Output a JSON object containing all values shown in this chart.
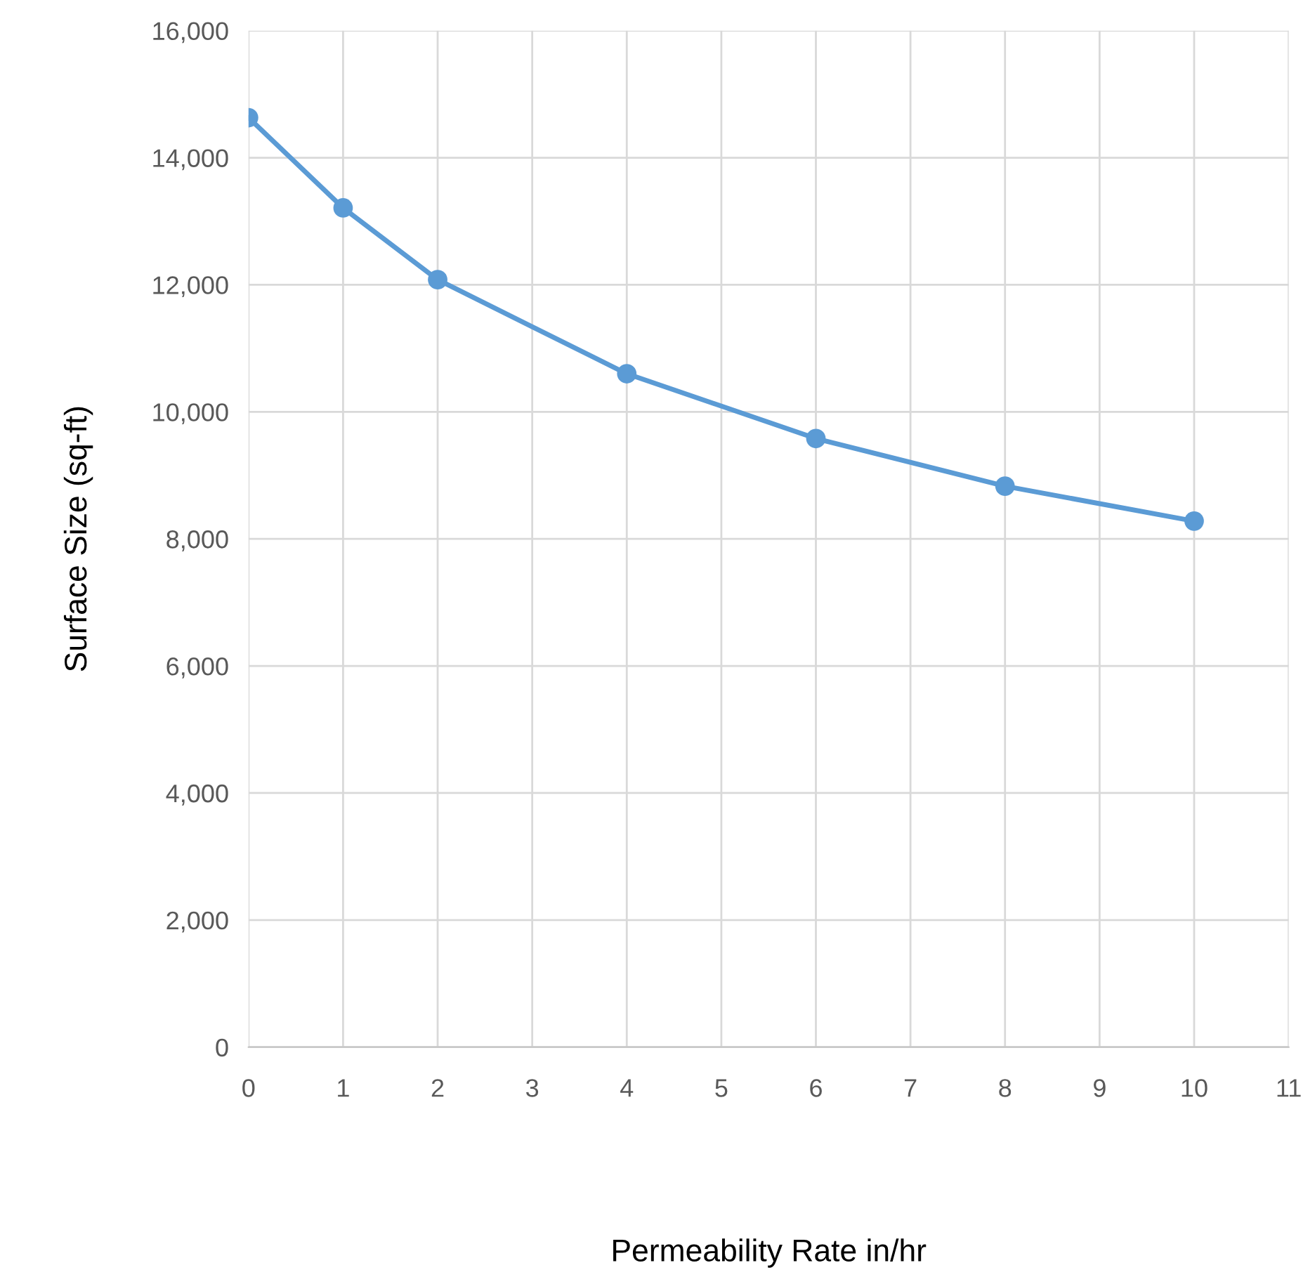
{
  "chart_data": {
    "type": "line",
    "xlabel": "Permeability Rate in/hr",
    "ylabel": "Surface Size (sq-ft)",
    "x": [
      0,
      1,
      2,
      4,
      6,
      8,
      10
    ],
    "series": [
      {
        "color": "#5b9bd5",
        "values": [
          14630,
          13210,
          12080,
          10600,
          9580,
          8830,
          8280
        ]
      }
    ],
    "xlim": [
      0,
      11
    ],
    "xticks": [
      0,
      1,
      2,
      3,
      4,
      5,
      6,
      7,
      8,
      9,
      10,
      11
    ],
    "ylim": [
      0,
      16000
    ],
    "yticks": [
      {
        "value": 0,
        "label": "0"
      },
      {
        "value": 2000,
        "label": "2,000"
      },
      {
        "value": 4000,
        "label": "4,000"
      },
      {
        "value": 6000,
        "label": "6,000"
      },
      {
        "value": 8000,
        "label": "8,000"
      },
      {
        "value": 10000,
        "label": "10,000"
      },
      {
        "value": 12000,
        "label": "12,000"
      },
      {
        "value": 14000,
        "label": "14,000"
      },
      {
        "value": 16000,
        "label": "16,000"
      }
    ],
    "grid": true,
    "marker": "circle",
    "line_style": "solid",
    "legend": false
  }
}
